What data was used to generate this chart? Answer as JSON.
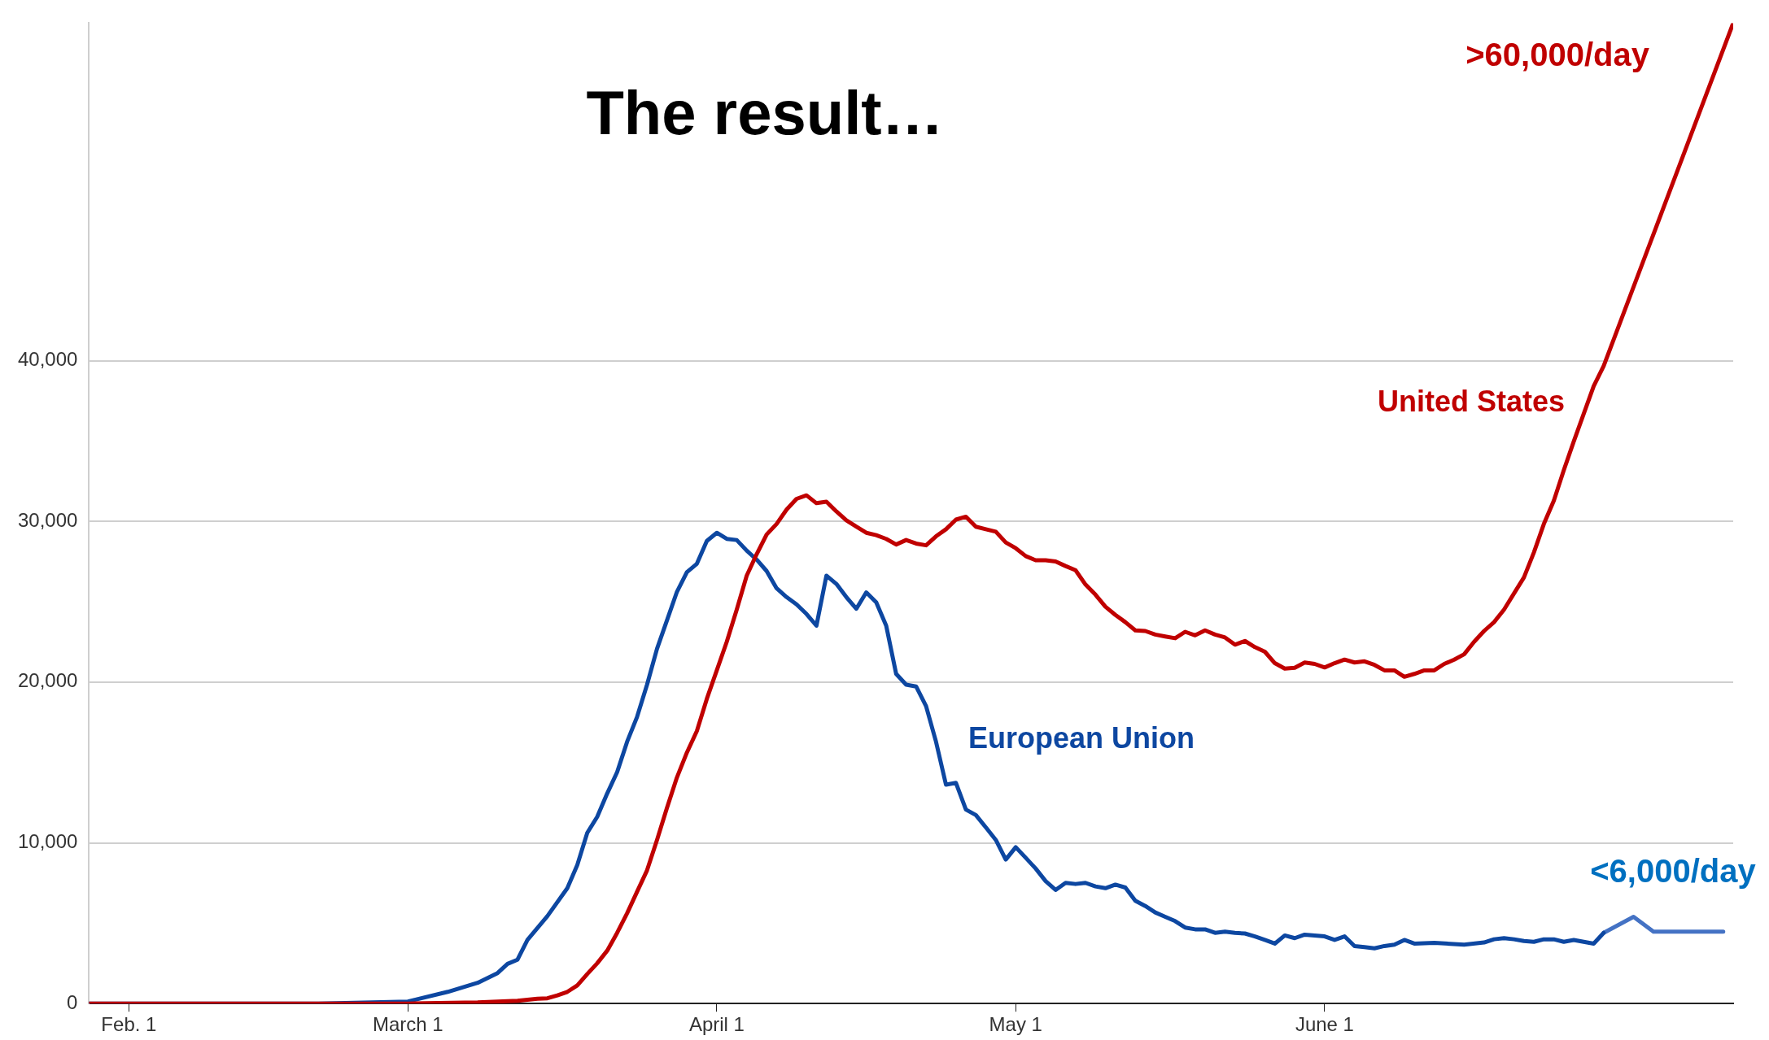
{
  "chart_data": {
    "type": "line",
    "title": "The result…",
    "xlim": [
      "--01-28",
      "--07-12"
    ],
    "xticks": [
      {
        "value": "--02-01",
        "label": "Feb. 1"
      },
      {
        "value": "--03-01",
        "label": "March 1"
      },
      {
        "value": "--04-01",
        "label": "April 1"
      },
      {
        "value": "--05-01",
        "label": "May 1"
      },
      {
        "value": "--06-01",
        "label": "June 1"
      }
    ],
    "ylim": [
      0,
      61000
    ],
    "yticks": [
      0,
      {
        "value": 10000,
        "label": "10,000"
      },
      {
        "value": 20000,
        "label": "20,000"
      },
      {
        "value": 30000,
        "label": "30,000"
      },
      {
        "value": 40000,
        "label": "40,000"
      }
    ],
    "grid": "y",
    "legend": false,
    "marker": "none",
    "line_style": "solid",
    "series": [
      {
        "name": "United States",
        "color": "#c00000",
        "x": [
          "--01-28",
          "--03-01",
          "--03-08",
          "--03-12",
          "--03-13",
          "--03-14",
          "--03-15",
          "--03-16",
          "--03-17",
          "--03-18",
          "--03-19",
          "--03-20",
          "--03-21",
          "--03-22",
          "--03-23",
          "--03-24",
          "--03-25",
          "--03-26",
          "--03-27",
          "--03-28",
          "--03-29",
          "--03-30",
          "--03-31",
          "--04-01",
          "--04-02",
          "--04-03",
          "--04-04",
          "--04-05",
          "--04-06",
          "--04-07",
          "--04-08",
          "--04-09",
          "--04-10",
          "--04-11",
          "--04-12",
          "--04-13",
          "--04-14",
          "--04-15",
          "--04-16",
          "--04-17",
          "--04-18",
          "--04-19",
          "--04-20",
          "--04-21",
          "--04-22",
          "--04-23",
          "--04-24",
          "--04-25",
          "--04-26",
          "--04-27",
          "--04-28",
          "--04-29",
          "--04-30",
          "--05-01",
          "--05-02",
          "--05-03",
          "--05-04",
          "--05-05",
          "--05-06",
          "--05-07",
          "--05-08",
          "--05-09",
          "--05-10",
          "--05-11",
          "--05-12",
          "--05-13",
          "--05-14",
          "--05-15",
          "--05-16",
          "--05-17",
          "--05-18",
          "--05-19",
          "--05-20",
          "--05-21",
          "--05-22",
          "--05-23",
          "--05-24",
          "--05-25",
          "--05-26",
          "--05-27",
          "--05-28",
          "--05-29",
          "--05-30",
          "--05-31",
          "--06-01",
          "--06-02",
          "--06-03",
          "--06-04",
          "--06-05",
          "--06-06",
          "--06-07",
          "--06-08",
          "--06-09",
          "--06-10",
          "--06-11",
          "--06-12",
          "--06-13",
          "--06-14",
          "--06-15",
          "--06-16",
          "--06-17",
          "--06-18",
          "--06-19",
          "--06-20",
          "--06-21",
          "--06-22",
          "--06-23",
          "--06-24",
          "--06-25",
          "--06-26",
          "--06-27",
          "--06-28",
          "--06-29",
          "--07-12"
        ],
        "values": [
          0,
          0,
          70,
          180,
          240,
          300,
          330,
          510,
          730,
          1130,
          1840,
          2510,
          3290,
          4400,
          5620,
          6960,
          8290,
          10180,
          12180,
          14070,
          15620,
          16960,
          18960,
          20730,
          22510,
          24510,
          26620,
          27960,
          29180,
          29840,
          30730,
          31400,
          31620,
          31130,
          31220,
          30620,
          30070,
          29670,
          29290,
          29140,
          28910,
          28560,
          28840,
          28620,
          28510,
          29070,
          29510,
          30110,
          30290,
          29670,
          29510,
          29360,
          28690,
          28330,
          27840,
          27580,
          27580,
          27510,
          27220,
          26960,
          26070,
          25440,
          24690,
          24180,
          23730,
          23220,
          23180,
          22960,
          22840,
          22730,
          23130,
          22910,
          23220,
          22960,
          22780,
          22330,
          22560,
          22180,
          21890,
          21180,
          20840,
          20890,
          21220,
          21130,
          20910,
          21180,
          21400,
          21220,
          21290,
          21070,
          20730,
          20730,
          20330,
          20510,
          20730,
          20730,
          21130,
          21400,
          21730,
          22510,
          23180,
          23730,
          24510,
          25510,
          26510,
          28070,
          29840,
          31290,
          33180,
          34970,
          36690,
          38410,
          39660,
          61000
        ]
      },
      {
        "name": "European Union",
        "color": "#0d47a1",
        "x": [
          "--01-28",
          "--02-20",
          "--03-01",
          "--03-05",
          "--03-08",
          "--03-10",
          "--03-11",
          "--03-12",
          "--03-13",
          "--03-15",
          "--03-17",
          "--03-18",
          "--03-19",
          "--03-20",
          "--03-21",
          "--03-22",
          "--03-23",
          "--03-24",
          "--03-25",
          "--03-26",
          "--03-27",
          "--03-28",
          "--03-29",
          "--03-30",
          "--03-31",
          "--04-01",
          "--04-02",
          "--04-03",
          "--04-04",
          "--04-05",
          "--04-06",
          "--04-07",
          "--04-08",
          "--04-09",
          "--04-10",
          "--04-11",
          "--04-12",
          "--04-13",
          "--04-14",
          "--04-15",
          "--04-16",
          "--04-17",
          "--04-18",
          "--04-19",
          "--04-20",
          "--04-21",
          "--04-22",
          "--04-23",
          "--04-24",
          "--04-25",
          "--04-26",
          "--04-27",
          "--04-28",
          "--04-29",
          "--04-30",
          "--05-01",
          "--05-02",
          "--05-03",
          "--05-04",
          "--05-05",
          "--05-06",
          "--05-07",
          "--05-08",
          "--05-09",
          "--05-10",
          "--05-11",
          "--05-12",
          "--05-13",
          "--05-14",
          "--05-15",
          "--05-16",
          "--05-17",
          "--05-18",
          "--05-19",
          "--05-20",
          "--05-21",
          "--05-22",
          "--05-23",
          "--05-24",
          "--05-25",
          "--05-26",
          "--05-27",
          "--05-28",
          "--05-29",
          "--05-30",
          "--05-31",
          "--06-01",
          "--06-02",
          "--06-03",
          "--06-04",
          "--06-05",
          "--06-06",
          "--06-07",
          "--06-08",
          "--06-09",
          "--06-10",
          "--06-12",
          "--06-15",
          "--06-17",
          "--06-18",
          "--06-19",
          "--06-20",
          "--06-21",
          "--06-22",
          "--06-23",
          "--06-24",
          "--06-25",
          "--06-26",
          "--06-27",
          "--06-28",
          "--06-29"
        ],
        "values": [
          0,
          0,
          130,
          730,
          1290,
          1900,
          2470,
          2730,
          3960,
          5440,
          7180,
          8620,
          10620,
          11620,
          13070,
          14400,
          16290,
          17840,
          19840,
          22070,
          23840,
          25620,
          26840,
          27360,
          28780,
          29290,
          28910,
          28840,
          28180,
          27620,
          26910,
          25840,
          25290,
          24840,
          24240,
          23510,
          26620,
          26110,
          25290,
          24560,
          25580,
          24960,
          23510,
          20510,
          19840,
          19730,
          18510,
          16290,
          13620,
          13730,
          12070,
          11730,
          10960,
          10180,
          8960,
          9730,
          9070,
          8400,
          7620,
          7070,
          7510,
          7440,
          7510,
          7290,
          7180,
          7400,
          7220,
          6400,
          6070,
          5670,
          5400,
          5130,
          4730,
          4620,
          4620,
          4400,
          4470,
          4400,
          4360,
          4180,
          3960,
          3730,
          4240,
          4070,
          4290,
          4240,
          4180,
          3960,
          4180,
          3580,
          3510,
          3440,
          3580,
          3670,
          3960,
          3730,
          3780,
          3670,
          3800,
          4000,
          4070,
          4000,
          3890,
          3840,
          4000,
          4000,
          3840,
          3960,
          3840,
          3730,
          4400
        ]
      },
      {
        "color": "#4472c4",
        "x": [
          "--06-29",
          "--07-02",
          "--07-04",
          "--07-11"
        ],
        "values": [
          4400,
          5400,
          4470,
          4470
        ]
      }
    ],
    "annotations": [
      {
        "text": ">60,000/day",
        "x": "--07-12",
        "y": 61000
      },
      {
        "text": "<6,000/day",
        "x": "--07-11",
        "y": 4470
      }
    ]
  }
}
